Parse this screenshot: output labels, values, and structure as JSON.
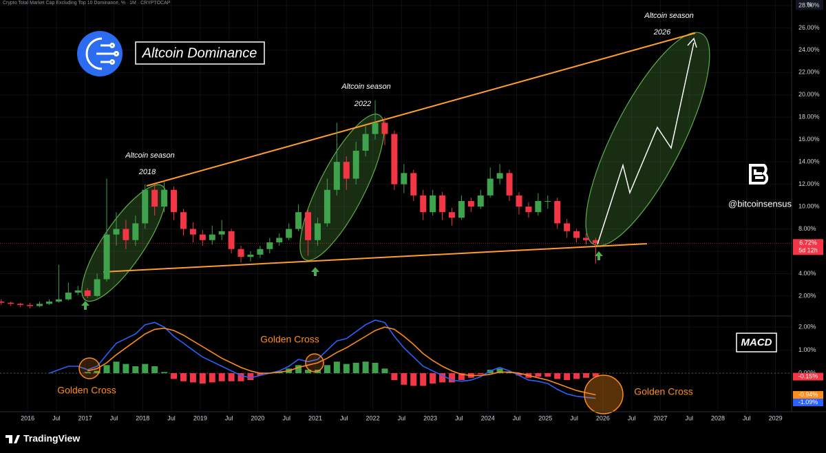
{
  "header": {
    "title": "Crypto Total Market Cap Excluding Top 10 Dominance, % · 1M · CRYPTOCAP",
    "unit": "%"
  },
  "annotations": {
    "brand_box": "Altcoin Dominance",
    "handle": "@bitcoinsensus",
    "macd_box": "MACD",
    "seasons": [
      {
        "label": "Altcoin season",
        "year": "2018"
      },
      {
        "label": "Altcoin season",
        "year": "2022"
      },
      {
        "label": "Altcoin season",
        "year": "2026"
      }
    ],
    "golden_cross": [
      "Golden Cross",
      "Golden Cross",
      "Golden Cross"
    ]
  },
  "footer": {
    "brand": "TradingView"
  },
  "chart_data": [
    {
      "type": "candlestick",
      "up_color": "#3fa34d",
      "down_color": "#f23645",
      "grid": true,
      "x": [
        "2015-07",
        "2015-09",
        "2015-11",
        "2016-01",
        "2016-03",
        "2016-05",
        "2016-07",
        "2016-09",
        "2016-11",
        "2017-01",
        "2017-03",
        "2017-05",
        "2017-07",
        "2017-09",
        "2017-11",
        "2018-01",
        "2018-03",
        "2018-05",
        "2018-07",
        "2018-09",
        "2018-11",
        "2019-01",
        "2019-03",
        "2019-05",
        "2019-07",
        "2019-09",
        "2019-11",
        "2020-01",
        "2020-03",
        "2020-05",
        "2020-07",
        "2020-09",
        "2020-11",
        "2021-01",
        "2021-03",
        "2021-05",
        "2021-07",
        "2021-09",
        "2021-11",
        "2022-01",
        "2022-03",
        "2022-05",
        "2022-07",
        "2022-09",
        "2022-11",
        "2023-01",
        "2023-03",
        "2023-05",
        "2023-07",
        "2023-09",
        "2023-11",
        "2024-01",
        "2024-03",
        "2024-05",
        "2024-07",
        "2024-09",
        "2024-11",
        "2025-01",
        "2025-03",
        "2025-05",
        "2025-07",
        "2025-09",
        "2025-11"
      ],
      "open": [
        1.5,
        1.4,
        1.3,
        1.2,
        1.1,
        1.3,
        1.5,
        1.7,
        2.3,
        2.5,
        2.0,
        3.5,
        7.5,
        8.0,
        7.0,
        8.5,
        11.5,
        10.0,
        11.5,
        9.5,
        8.0,
        7.5,
        7.0,
        7.5,
        7.8,
        6.2,
        5.5,
        5.7,
        6.2,
        6.8,
        7.2,
        8.0,
        9.5,
        7.0,
        8.5,
        11.5,
        14.0,
        12.5,
        15.0,
        16.5,
        17.5,
        16.5,
        12.0,
        13.0,
        11.0,
        9.5,
        11.0,
        9.5,
        9.0,
        10.5,
        10.0,
        11.0,
        12.5,
        13.0,
        11.0,
        10.0,
        9.5,
        10.5,
        10.5,
        8.5,
        7.8,
        7.2,
        7.0
      ],
      "high": [
        1.7,
        1.5,
        1.4,
        1.4,
        1.5,
        1.7,
        4.8,
        3.2,
        2.9,
        2.7,
        4.0,
        12.5,
        9.5,
        8.8,
        9.2,
        12.0,
        12.0,
        12.2,
        11.8,
        9.8,
        8.6,
        7.9,
        8.3,
        8.8,
        8.0,
        6.5,
        6.0,
        6.5,
        7.2,
        7.6,
        8.5,
        10.2,
        9.8,
        9.0,
        12.5,
        17.5,
        14.5,
        15.8,
        17.2,
        19.5,
        18.0,
        16.8,
        13.8,
        13.3,
        11.5,
        11.5,
        11.3,
        9.9,
        11.0,
        10.8,
        11.5,
        13.5,
        13.8,
        13.3,
        11.3,
        10.4,
        11.2,
        11.0,
        10.8,
        8.9,
        8.0,
        7.6,
        7.2
      ],
      "low": [
        1.2,
        1.1,
        1.0,
        0.9,
        1.0,
        1.2,
        1.4,
        1.6,
        2.1,
        1.8,
        1.9,
        3.3,
        6.5,
        6.2,
        6.5,
        8.0,
        9.2,
        9.5,
        8.8,
        7.4,
        6.8,
        6.5,
        6.6,
        7.0,
        5.8,
        5.0,
        5.1,
        5.4,
        5.8,
        6.5,
        7.0,
        7.8,
        5.6,
        6.5,
        8.2,
        11.0,
        11.5,
        12.0,
        14.5,
        16.0,
        15.5,
        11.5,
        11.2,
        10.5,
        8.8,
        9.2,
        8.8,
        8.3,
        8.8,
        9.5,
        9.8,
        10.8,
        12.0,
        10.5,
        9.3,
        9.0,
        9.2,
        9.8,
        8.0,
        7.2,
        6.8,
        6.6,
        4.9
      ],
      "close": [
        1.4,
        1.3,
        1.2,
        1.1,
        1.3,
        1.5,
        1.7,
        2.3,
        2.5,
        2.0,
        3.5,
        7.5,
        8.0,
        7.0,
        8.5,
        11.5,
        10.0,
        11.5,
        9.5,
        8.0,
        7.5,
        7.0,
        7.5,
        7.8,
        6.2,
        5.5,
        5.7,
        6.2,
        6.8,
        7.2,
        8.0,
        9.5,
        7.0,
        8.5,
        11.5,
        14.0,
        12.5,
        15.0,
        16.5,
        17.5,
        16.5,
        12.0,
        13.0,
        11.0,
        9.5,
        11.0,
        9.5,
        9.0,
        10.5,
        10.0,
        11.0,
        12.5,
        13.0,
        11.0,
        10.0,
        9.5,
        10.5,
        10.5,
        8.5,
        7.8,
        7.2,
        7.0,
        6.72
      ],
      "last_label": "6.72%",
      "countdown": "5d 12h",
      "last_color": "#f23645",
      "ylim": [
        0.27,
        28.49
      ],
      "yticks": [
        {
          "value": 2,
          "label": "2.00%"
        },
        {
          "value": 4,
          "label": "4.00%"
        },
        {
          "value": 6,
          "label": "6.00%"
        },
        {
          "value": 8,
          "label": "8.00%"
        },
        {
          "value": 10,
          "label": "10.00%"
        },
        {
          "value": 12,
          "label": "12.00%"
        },
        {
          "value": 14,
          "label": "14.00%"
        },
        {
          "value": 16,
          "label": "16.00%"
        },
        {
          "value": 18,
          "label": "18.00%"
        },
        {
          "value": 20,
          "label": "20.00%"
        },
        {
          "value": 22,
          "label": "22.00%"
        },
        {
          "value": 24,
          "label": "24.00%"
        },
        {
          "value": 26,
          "label": "26.00%"
        },
        {
          "value": 28,
          "label": "28.00%"
        }
      ],
      "xlim": [
        2015.52,
        2029.28
      ],
      "xticks": [
        2016,
        {
          "value": 2016.5,
          "label": "Jul"
        },
        2017,
        {
          "value": 2017.5,
          "label": "Jul"
        },
        2018,
        {
          "value": 2018.5,
          "label": "Jul"
        },
        2019,
        {
          "value": 2019.5,
          "label": "Jul"
        },
        2020,
        {
          "value": 2020.5,
          "label": "Jul"
        },
        2021,
        {
          "value": 2021.5,
          "label": "Jul"
        },
        2022,
        {
          "value": 2022.5,
          "label": "Jul"
        },
        2023,
        {
          "value": 2023.5,
          "label": "Jul"
        },
        2024,
        {
          "value": 2024.5,
          "label": "Jul"
        },
        2025,
        {
          "value": 2025.5,
          "label": "Jul"
        },
        2026,
        {
          "value": 2026.5,
          "label": "Jul"
        },
        2027,
        {
          "value": 2027.5,
          "label": "Jul"
        },
        2028,
        {
          "value": 2028.5,
          "label": "Jul"
        },
        2029
      ]
    },
    {
      "type": "macd",
      "ylim": [
        -1.67,
        2.45
      ],
      "yticks": [
        {
          "value": 2,
          "label": "2.00%"
        },
        {
          "value": 1,
          "label": "1.00%"
        },
        {
          "value": 0,
          "label": "0.00%"
        }
      ],
      "series": [
        {
          "name": "MACD",
          "color": "#2962ff",
          "values": [
            null,
            null,
            null,
            null,
            null,
            0.0,
            0.15,
            0.3,
            0.3,
            0.15,
            0.3,
            0.8,
            1.3,
            1.5,
            1.7,
            2.1,
            2.2,
            2.0,
            1.6,
            1.3,
            1.0,
            0.7,
            0.5,
            0.3,
            0.1,
            -0.1,
            -0.2,
            -0.1,
            0,
            0.1,
            0.3,
            0.6,
            0.5,
            0.6,
            1.0,
            1.4,
            1.5,
            1.8,
            2.1,
            2.3,
            2.2,
            1.6,
            1.1,
            0.7,
            0.3,
            0.1,
            -0.1,
            -0.3,
            -0.35,
            -0.3,
            -0.15,
            0.1,
            0.25,
            0.1,
            -0.1,
            -0.3,
            -0.35,
            -0.45,
            -0.7,
            -0.9,
            -1.0,
            -1.05,
            -1.09
          ],
          "last_label": "-1.09%"
        },
        {
          "name": "Signal",
          "color": "#ff8c1a",
          "values": [
            null,
            null,
            null,
            null,
            null,
            null,
            null,
            null,
            null,
            0.1,
            0.2,
            0.45,
            0.8,
            1.1,
            1.4,
            1.7,
            1.9,
            1.95,
            1.85,
            1.65,
            1.4,
            1.15,
            0.9,
            0.65,
            0.45,
            0.25,
            0.1,
            0,
            0,
            0.05,
            0.1,
            0.25,
            0.35,
            0.45,
            0.65,
            0.9,
            1.1,
            1.35,
            1.6,
            1.85,
            2.0,
            1.9,
            1.6,
            1.25,
            0.85,
            0.55,
            0.3,
            0.1,
            -0.05,
            -0.1,
            -0.1,
            -0.05,
            0.05,
            0.05,
            0,
            -0.1,
            -0.2,
            -0.3,
            -0.45,
            -0.6,
            -0.75,
            -0.85,
            -0.94
          ],
          "last_label": "-0.94%"
        }
      ],
      "histogram": {
        "up_color": "#3fa34d",
        "down_color": "#f23645",
        "values": [
          null,
          null,
          null,
          null,
          null,
          null,
          null,
          null,
          null,
          0.05,
          0.1,
          0.35,
          0.5,
          0.4,
          0.3,
          0.4,
          0.3,
          0.05,
          -0.25,
          -0.35,
          -0.4,
          -0.45,
          -0.4,
          -0.35,
          -0.35,
          -0.35,
          -0.3,
          -0.1,
          0,
          0.05,
          0.2,
          0.35,
          0.15,
          0.15,
          0.35,
          0.5,
          0.4,
          0.45,
          0.5,
          0.45,
          0.2,
          -0.3,
          -0.5,
          -0.55,
          -0.55,
          -0.45,
          -0.4,
          -0.4,
          -0.3,
          -0.2,
          -0.05,
          0.15,
          0.2,
          0.05,
          -0.1,
          -0.2,
          -0.15,
          -0.15,
          -0.25,
          -0.3,
          -0.25,
          -0.2,
          -0.15
        ],
        "last_label": "-0.15%"
      }
    }
  ]
}
